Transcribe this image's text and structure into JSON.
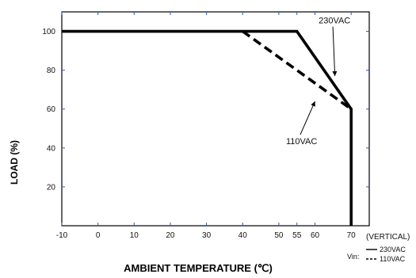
{
  "chart_data": {
    "type": "line",
    "xlabel": "AMBIENT TEMPERATURE (℃)",
    "ylabel": "LOAD (%)",
    "xlim": [
      -10,
      75
    ],
    "ylim": [
      0,
      110
    ],
    "x_ticks": [
      -10,
      0,
      10,
      20,
      30,
      40,
      50,
      55,
      60,
      70
    ],
    "x_tick_labels": [
      "-10",
      "0",
      "10",
      "20",
      "30",
      "40",
      "50",
      "55",
      "60",
      "70"
    ],
    "x_axis_note": "(VERTICAL)",
    "y_ticks": [
      20,
      40,
      60,
      80,
      100
    ],
    "y_tick_labels": [
      "20",
      "40",
      "60",
      "80",
      "100"
    ],
    "grid": false,
    "series": [
      {
        "name": "230VAC",
        "style": "solid",
        "x": [
          -10,
          55,
          70,
          70
        ],
        "y": [
          100,
          100,
          60,
          0
        ]
      },
      {
        "name": "110VAC",
        "style": "dashed",
        "x": [
          40,
          70
        ],
        "y": [
          100,
          60
        ]
      }
    ],
    "annotations": [
      {
        "text": "230VAC",
        "x": 61,
        "y": 104,
        "arrow_to": [
          65.5,
          77
        ]
      },
      {
        "text": "110VAC",
        "x": 52,
        "y": 42,
        "arrow_to": [
          60,
          64
        ]
      }
    ],
    "legend": {
      "prefix": "Vin:",
      "entries": [
        {
          "style": "solid",
          "label": "230VAC"
        },
        {
          "style": "dashed",
          "label": "110VAC"
        }
      ]
    },
    "colors": {
      "line": "#000000",
      "axis": "#000000",
      "tick": "#2a5db0"
    }
  }
}
